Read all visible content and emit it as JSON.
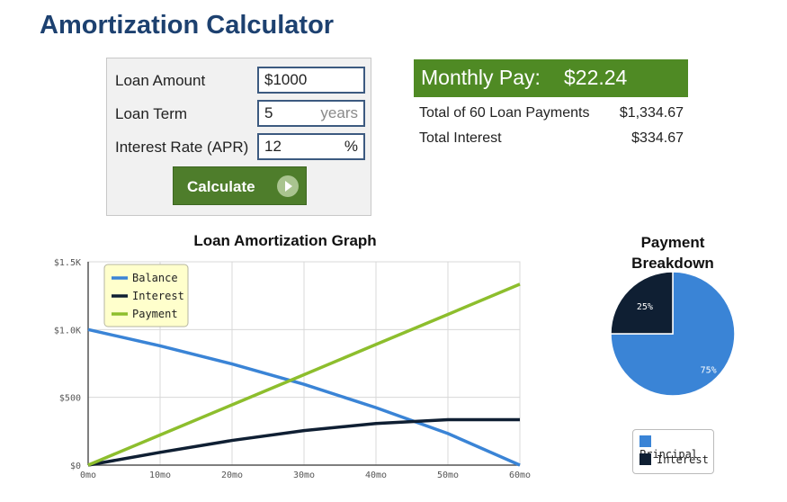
{
  "title": "Amortization Calculator",
  "form": {
    "loan_amount_label": "Loan Amount",
    "loan_amount_value": "$1000",
    "loan_term_label": "Loan Term",
    "loan_term_value": "5",
    "loan_term_unit": "years",
    "interest_rate_label": "Interest Rate (APR)",
    "interest_rate_value": "12",
    "interest_rate_unit": "%",
    "calculate_label": "Calculate",
    "calculate_icon": "play-circle-icon"
  },
  "results": {
    "monthly_pay_label": "Monthly Pay:",
    "monthly_pay_value": "$22.24",
    "total_payments_label": "Total of 60 Loan Payments",
    "total_payments_value": "$1,334.67",
    "total_interest_label": "Total Interest",
    "total_interest_value": "$334.67"
  },
  "chart_data": [
    {
      "type": "line",
      "title": "Loan Amortization Graph",
      "x": [
        0,
        10,
        20,
        30,
        40,
        50,
        60
      ],
      "x_tick_labels": [
        "0mo",
        "10mo",
        "20mo",
        "30mo",
        "40mo",
        "50mo",
        "60mo"
      ],
      "y_tick_labels": [
        "$0",
        "$500",
        "$1.0K",
        "$1.5K"
      ],
      "xlim": [
        0,
        60
      ],
      "ylim": [
        0,
        1500
      ],
      "grid": true,
      "legend_position": "top-left",
      "series": [
        {
          "name": "Balance",
          "color": "#3a84d6",
          "values": [
            1000,
            880,
            746,
            596,
            424,
            233,
            0
          ]
        },
        {
          "name": "Interest",
          "color": "#0f1f33",
          "values": [
            0,
            94,
            182,
            255,
            307,
            335,
            335
          ]
        },
        {
          "name": "Payment",
          "color": "#8dbe2d",
          "values": [
            0,
            222,
            445,
            667,
            890,
            1112,
            1335
          ]
        }
      ]
    },
    {
      "type": "pie",
      "title": "Payment Breakdown",
      "legend_position": "bottom",
      "slices": [
        {
          "name": "Principal",
          "value": 75,
          "label": "75%",
          "color": "#3a84d6"
        },
        {
          "name": "Interest",
          "value": 25,
          "label": "25%",
          "color": "#0f1f33"
        }
      ]
    }
  ]
}
